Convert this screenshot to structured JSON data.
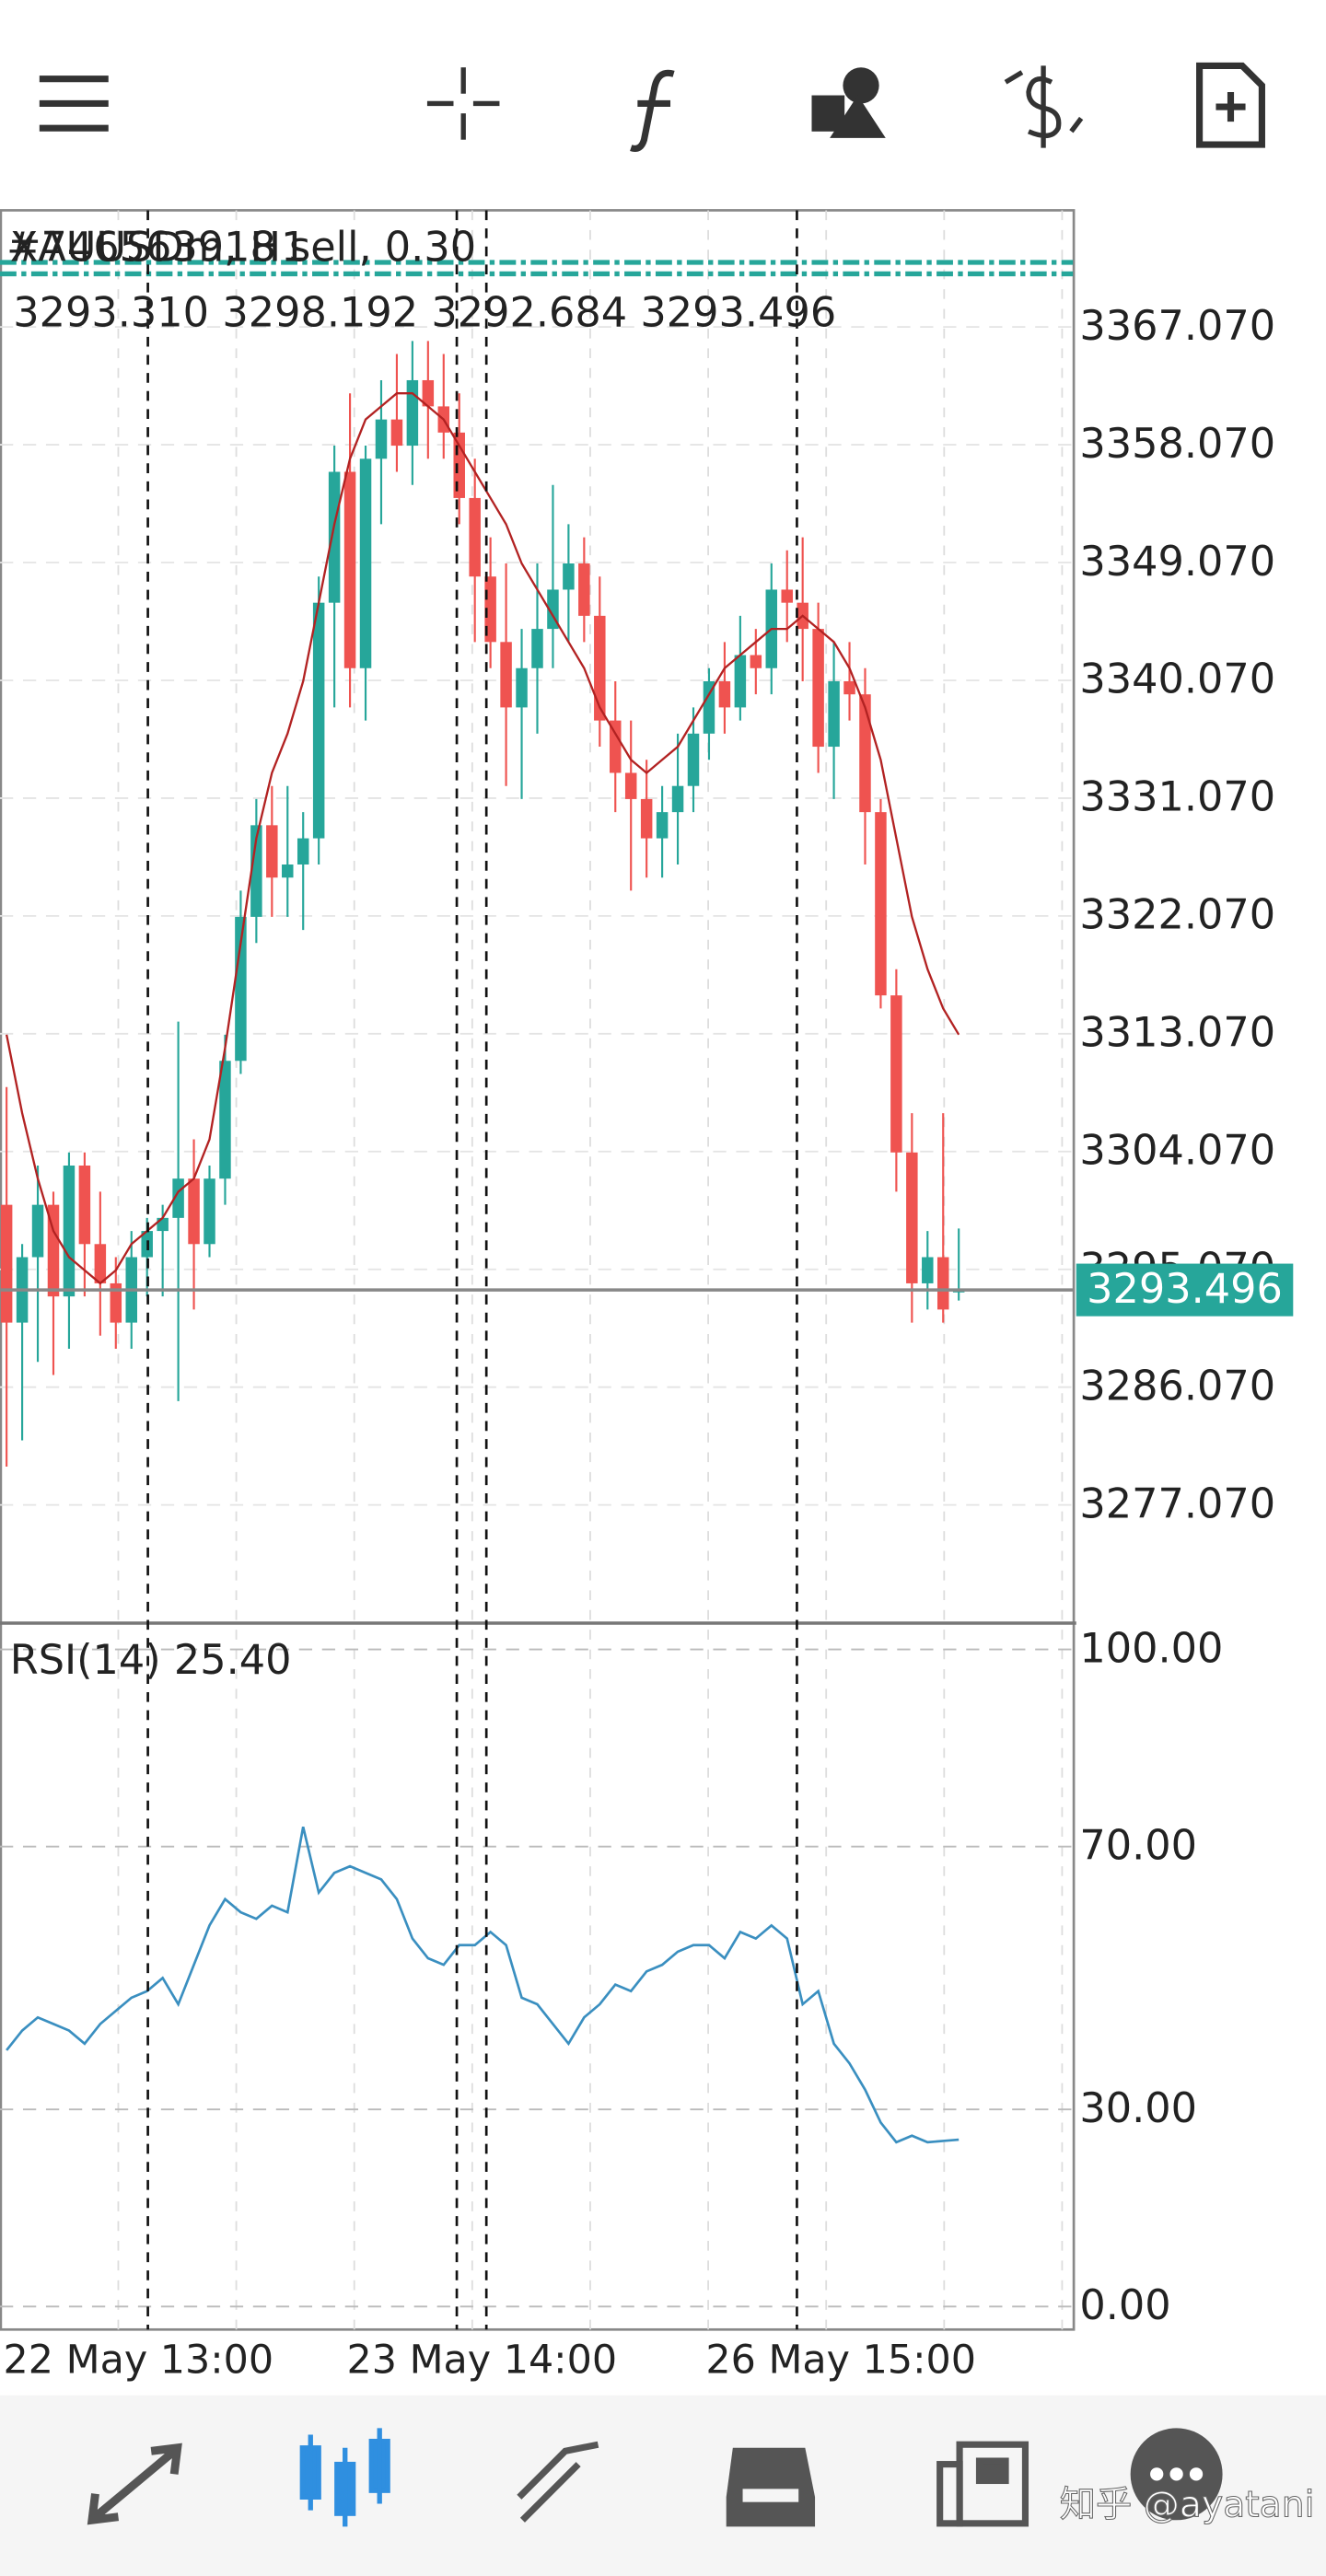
{
  "chart_data": [
    {
      "type": "candlestick",
      "title": "XAUUSDm, H1",
      "order_label": "#746563918 sell, 0.30",
      "order_price": 3371.5,
      "last_bar_labels": [
        "3293.310",
        "3298.192",
        "3292.684",
        "3293.496"
      ],
      "categories": [
        "22 May 13:00",
        null,
        null,
        null,
        null,
        null,
        null,
        null,
        null,
        null,
        null,
        null,
        null,
        null,
        null,
        null,
        null,
        null,
        null,
        null,
        null,
        null,
        "23 May 14:00",
        null,
        null,
        null,
        null,
        null,
        null,
        null,
        null,
        null,
        null,
        null,
        null,
        null,
        null,
        null,
        null,
        null,
        null,
        null,
        null,
        null,
        null,
        "26 May 15:00",
        null,
        null,
        null,
        null,
        null,
        null,
        null,
        null,
        null,
        null,
        null,
        null,
        null,
        null,
        null,
        null
      ],
      "open": [
        3300,
        3291,
        3296,
        3300,
        3293,
        3303,
        3297,
        3294,
        3291,
        3296,
        3298,
        3299,
        3302,
        3297,
        3302,
        3311,
        3322,
        3329,
        3325,
        3326,
        3328,
        3346,
        3356,
        3341,
        3357,
        3360,
        3358,
        3363,
        3361,
        3359,
        3354,
        3348,
        3343,
        3338,
        3341,
        3344,
        3347,
        3349,
        3345,
        3337,
        3333,
        3331,
        3328,
        3330,
        3332,
        3336,
        3340,
        3338,
        3342,
        3341,
        3347,
        3346,
        3344,
        3335,
        3340,
        3339,
        3330,
        3316,
        3304,
        3294,
        3296,
        3293.31
      ],
      "high": [
        3309,
        3297,
        3303,
        3301,
        3304,
        3304,
        3301,
        3296,
        3298,
        3299,
        3300,
        3314,
        3305,
        3303,
        3313,
        3324,
        3331,
        3332,
        3332,
        3330,
        3348,
        3358,
        3362,
        3358,
        3363,
        3365,
        3366,
        3366,
        3365,
        3362,
        3357,
        3351,
        3349,
        3344,
        3349,
        3355,
        3352,
        3351,
        3348,
        3340,
        3337,
        3334,
        3332,
        3336,
        3338,
        3341,
        3343,
        3345,
        3344,
        3349,
        3350,
        3351,
        3346,
        3343,
        3343,
        3341,
        3331,
        3318,
        3307,
        3298,
        3307,
        3298.192
      ],
      "low": [
        3280,
        3282,
        3288,
        3287,
        3289,
        3293,
        3290,
        3289,
        3289,
        3293,
        3293,
        3285,
        3292,
        3296,
        3300,
        3310,
        3320,
        3322,
        3322,
        3321,
        3326,
        3338,
        3338,
        3337,
        3352,
        3356,
        3355,
        3357,
        3357,
        3352,
        3343,
        3341,
        3332,
        3331,
        3336,
        3341,
        3343,
        3343,
        3335,
        3330,
        3324,
        3325,
        3325,
        3326,
        3330,
        3334,
        3336,
        3337,
        3339,
        3339,
        3343,
        3340,
        3333,
        3331,
        3337,
        3326,
        3315,
        3301,
        3291,
        3292,
        3291,
        3292.684
      ],
      "close": [
        3291,
        3296,
        3300,
        3293,
        3303,
        3297,
        3294,
        3291,
        3296,
        3298,
        3299,
        3302,
        3297,
        3302,
        3311,
        3322,
        3329,
        3325,
        3326,
        3328,
        3346,
        3356,
        3341,
        3357,
        3360,
        3358,
        3363,
        3361,
        3359,
        3354,
        3348,
        3343,
        3338,
        3341,
        3344,
        3347,
        3349,
        3345,
        3337,
        3333,
        3331,
        3328,
        3330,
        3332,
        3336,
        3340,
        3338,
        3342,
        3341,
        3347,
        3346,
        3344,
        3335,
        3340,
        3339,
        3330,
        3316,
        3304,
        3294,
        3296,
        3292,
        3293.496
      ],
      "ma": [
        3313,
        3307,
        3302,
        3298,
        3296,
        3295,
        3294,
        3295,
        3297,
        3298,
        3299,
        3301,
        3302,
        3305,
        3312,
        3320,
        3328,
        3333,
        3336,
        3340,
        3346,
        3352,
        3357,
        3360,
        3361,
        3362,
        3362,
        3361,
        3360,
        3358,
        3356,
        3354,
        3352,
        3349,
        3347,
        3345,
        3343,
        3341,
        3338,
        3336,
        3334,
        3333,
        3334,
        3335,
        3337,
        3339,
        3341,
        3342,
        3343,
        3344,
        3344,
        3345,
        3344,
        3343,
        3341,
        3338,
        3334,
        3328,
        3322,
        3318,
        3315,
        3313
      ],
      "up_color": "#26a69a",
      "down_color": "#ef5350",
      "ma_color": "#b22222",
      "ylim": [
        3268.04,
        3375.98
      ],
      "yticks": [
        {
          "value": 3277.07,
          "label": "3277.070"
        },
        {
          "value": 3286.07,
          "label": "3286.070"
        },
        {
          "value": 3295.07,
          "label": "3295.070"
        },
        {
          "value": 3304.07,
          "label": "3304.070"
        },
        {
          "value": 3313.07,
          "label": "3313.070"
        },
        {
          "value": 3322.07,
          "label": "3322.070"
        },
        {
          "value": 3331.07,
          "label": "3331.070"
        },
        {
          "value": 3340.07,
          "label": "3340.070"
        },
        {
          "value": 3349.07,
          "label": "3349.070"
        },
        {
          "value": 3358.07,
          "label": "3358.070"
        },
        {
          "value": 3367.07,
          "label": "3367.070"
        }
      ],
      "grid": true
    },
    {
      "type": "line",
      "title": "RSI(14) 25.40",
      "color": "#3a8fc0",
      "values": [
        39,
        42,
        44,
        43,
        42,
        40,
        43,
        45,
        47,
        48,
        50,
        46,
        52,
        58,
        62,
        60,
        59,
        61,
        60,
        73,
        63,
        66,
        67,
        66,
        65,
        62,
        56,
        53,
        52,
        55,
        55,
        57,
        55,
        47,
        46,
        43,
        40,
        44,
        46,
        49,
        48,
        51,
        52,
        54,
        55,
        55,
        53,
        57,
        56,
        58,
        56,
        46,
        48,
        40,
        37,
        33,
        28,
        25,
        26,
        25,
        25.2,
        25.4
      ],
      "ylim": [
        -3.5,
        103.5
      ],
      "yticks": [
        {
          "value": 0,
          "label": "0.00"
        },
        {
          "value": 30,
          "label": "30.00"
        },
        {
          "value": 70,
          "label": "70.00"
        },
        {
          "value": 100,
          "label": "100.00"
        }
      ],
      "grid": true
    }
  ],
  "watermark": "知乎 @ayatani"
}
